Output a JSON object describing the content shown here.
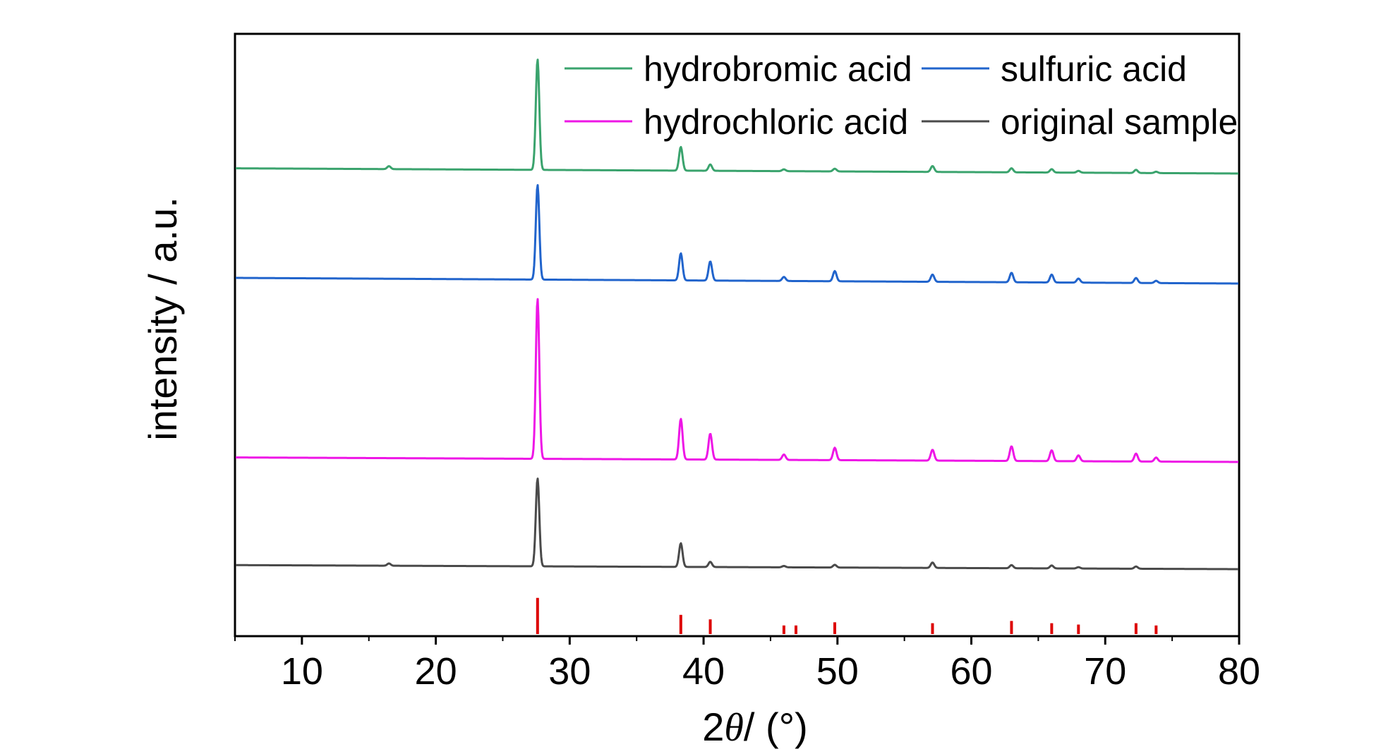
{
  "chart_data": {
    "type": "line",
    "title": "",
    "xlabel_prefix": "2",
    "xlabel_symbol": "θ",
    "xlabel_suffix": "/ (°)",
    "ylabel": "intensity / a.u.",
    "xlim": [
      5,
      80
    ],
    "xticks": [
      10,
      20,
      30,
      40,
      50,
      60,
      70,
      80
    ],
    "y_tick_labels_shown": false,
    "grid": false,
    "legend_position": "top-right",
    "series": [
      {
        "name": "hydrobromic acid",
        "color": "#3aa36d",
        "baseline_start": 2.3,
        "baseline_end": 0,
        "peaks": [
          {
            "x": 16.5,
            "h": 1.3
          },
          {
            "x": 27.6,
            "h": 49
          },
          {
            "x": 38.3,
            "h": 10.5
          },
          {
            "x": 40.5,
            "h": 2.8
          },
          {
            "x": 46.0,
            "h": 0.8
          },
          {
            "x": 49.8,
            "h": 1.2
          },
          {
            "x": 57.1,
            "h": 2.6
          },
          {
            "x": 63.0,
            "h": 1.8
          },
          {
            "x": 66.0,
            "h": 1.5
          },
          {
            "x": 68.0,
            "h": 0.8
          },
          {
            "x": 72.3,
            "h": 1.4
          },
          {
            "x": 73.8,
            "h": 0.6
          }
        ]
      },
      {
        "name": "sulfuric acid",
        "color": "#2164cc",
        "baseline_start": 2.5,
        "baseline_end": 0,
        "peaks": [
          {
            "x": 27.6,
            "h": 42
          },
          {
            "x": 38.3,
            "h": 12
          },
          {
            "x": 40.5,
            "h": 8.5
          },
          {
            "x": 46.0,
            "h": 1.8
          },
          {
            "x": 49.8,
            "h": 4.5
          },
          {
            "x": 57.1,
            "h": 3.2
          },
          {
            "x": 63.0,
            "h": 4.2
          },
          {
            "x": 66.0,
            "h": 3.5
          },
          {
            "x": 68.0,
            "h": 1.8
          },
          {
            "x": 72.3,
            "h": 2.2
          },
          {
            "x": 73.8,
            "h": 1.0
          }
        ]
      },
      {
        "name": "hydrochloric acid",
        "color": "#ee16e6",
        "baseline_start": 2.0,
        "baseline_end": 0,
        "peaks": [
          {
            "x": 27.6,
            "h": 71
          },
          {
            "x": 38.3,
            "h": 18
          },
          {
            "x": 40.5,
            "h": 11.5
          },
          {
            "x": 46.0,
            "h": 2.4
          },
          {
            "x": 49.8,
            "h": 5.5
          },
          {
            "x": 57.1,
            "h": 4.8
          },
          {
            "x": 63.0,
            "h": 6.5
          },
          {
            "x": 66.0,
            "h": 4.8
          },
          {
            "x": 68.0,
            "h": 2.6
          },
          {
            "x": 72.3,
            "h": 3.5
          },
          {
            "x": 73.8,
            "h": 1.8
          }
        ]
      },
      {
        "name": "original sample",
        "color": "#4a4a4a",
        "baseline_start": 1.8,
        "baseline_end": 0,
        "peaks": [
          {
            "x": 16.5,
            "h": 1.0
          },
          {
            "x": 27.6,
            "h": 39
          },
          {
            "x": 38.3,
            "h": 10.5
          },
          {
            "x": 40.5,
            "h": 2.3
          },
          {
            "x": 46.0,
            "h": 0.6
          },
          {
            "x": 49.8,
            "h": 1.2
          },
          {
            "x": 57.1,
            "h": 2.4
          },
          {
            "x": 63.0,
            "h": 1.4
          },
          {
            "x": 66.0,
            "h": 1.3
          },
          {
            "x": 68.0,
            "h": 0.6
          },
          {
            "x": 72.3,
            "h": 1.0
          }
        ]
      }
    ],
    "reference_lines": {
      "color": "#dd0000",
      "values": [
        {
          "x": 27.6,
          "h": 16
        },
        {
          "x": 38.3,
          "h": 8.5
        },
        {
          "x": 40.5,
          "h": 6.5
        },
        {
          "x": 46.0,
          "h": 3.8
        },
        {
          "x": 46.9,
          "h": 3.8
        },
        {
          "x": 49.8,
          "h": 5.2
        },
        {
          "x": 57.1,
          "h": 4.8
        },
        {
          "x": 63.0,
          "h": 5.8
        },
        {
          "x": 66.0,
          "h": 4.8
        },
        {
          "x": 68.0,
          "h": 4.2
        },
        {
          "x": 72.3,
          "h": 4.8
        },
        {
          "x": 73.8,
          "h": 3.8
        }
      ]
    }
  }
}
